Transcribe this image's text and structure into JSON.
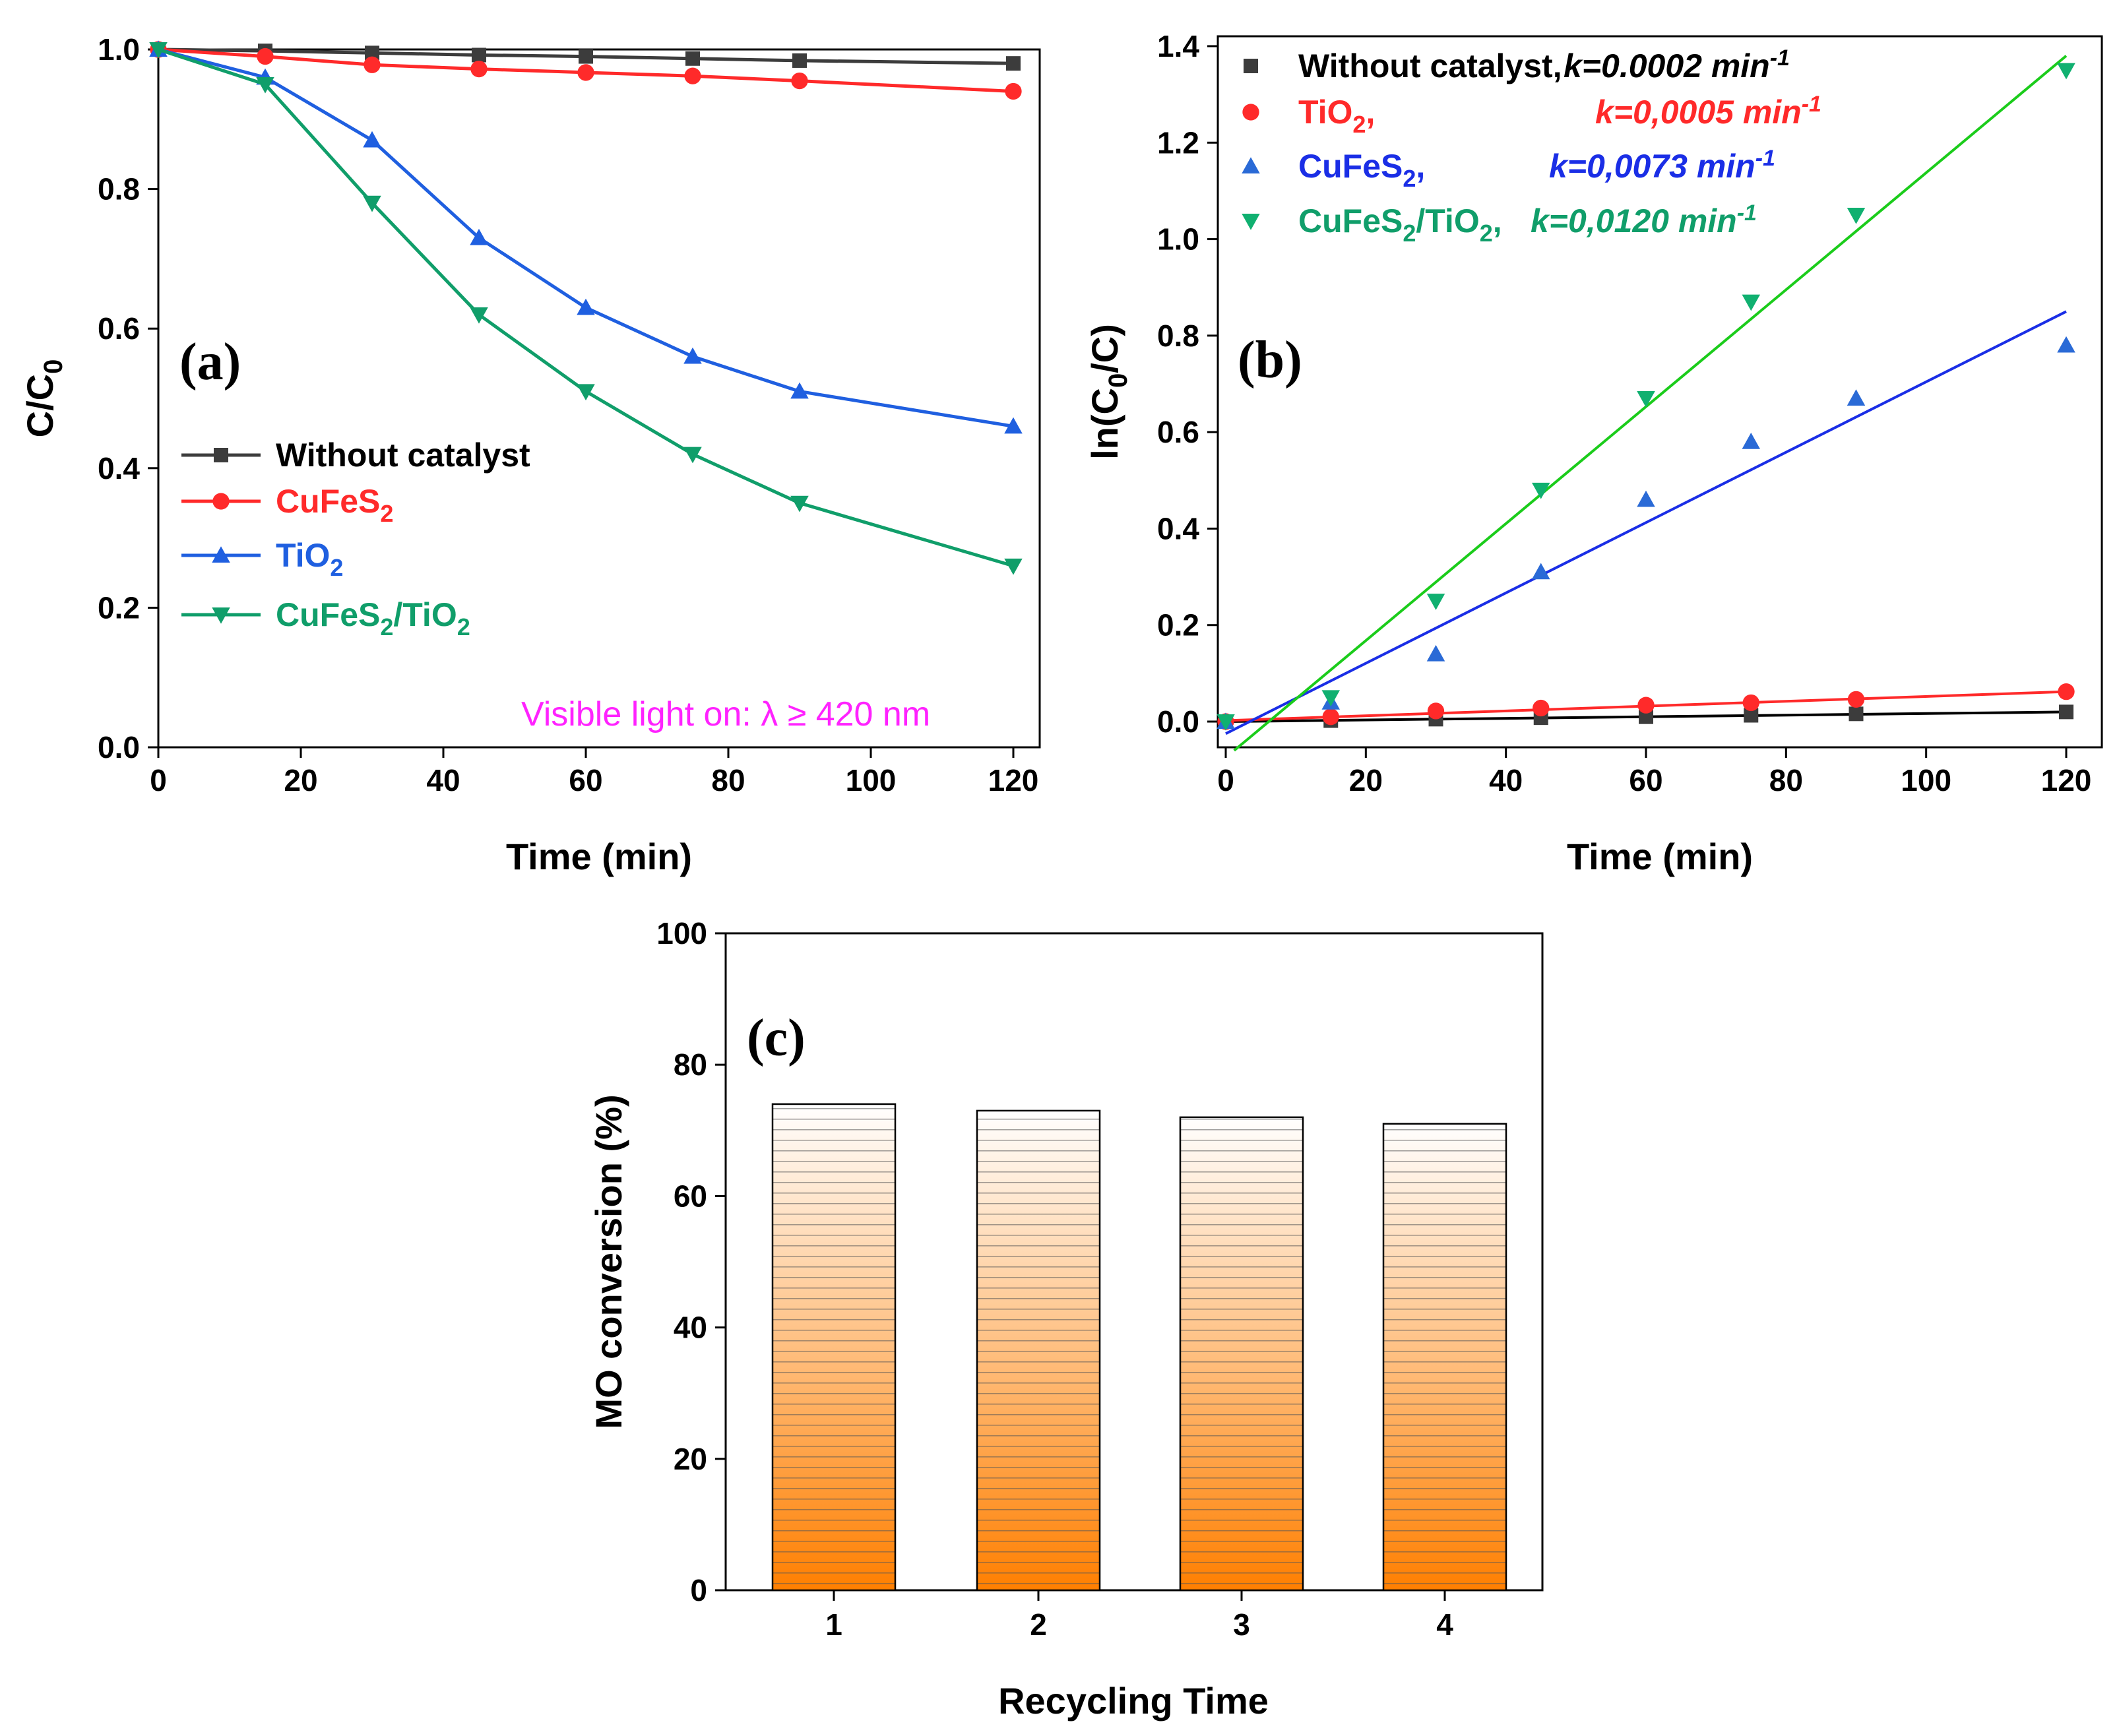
{
  "colors": {
    "without_catalyst": "#3c3c3c",
    "cufes2_a": "#ff2a2a",
    "tio2_a": "#1f5fe0",
    "composite_a": "#109e6a",
    "tio2_b": "#ff2a2a",
    "cufes2_b": "#1a2ee6",
    "composite_b": "#1bcc1b",
    "markers_cufes2_b": "#2a6ad6",
    "markers_composite_b": "#10b070",
    "note": "#ff22ff",
    "bar_fill_top": "#ffffff",
    "bar_fill_bottom": "#ff7f00"
  },
  "chart_data": [
    {
      "type": "line",
      "panel_label": "(a)",
      "xlabel": "Time (min)",
      "ylabel_main": "C/C",
      "ylabel_sub": "0",
      "xlim": [
        0,
        120
      ],
      "ylim": [
        0,
        1.0
      ],
      "xticks": [
        "0",
        "20",
        "40",
        "60",
        "80",
        "100",
        "120"
      ],
      "yticks": [
        "0.0",
        "0.2",
        "0.4",
        "0.6",
        "0.8",
        "1.0"
      ],
      "annotation": "Visible light on: λ ≥ 420 nm",
      "legend_position": "center-left",
      "x": [
        0,
        15,
        30,
        45,
        60,
        75,
        90,
        120
      ],
      "series": [
        {
          "name": "Without catalyst",
          "name_main": "Without catalyst",
          "name_sub": "",
          "name_tail": "",
          "marker": "square",
          "values": [
            1.0,
            0.998,
            0.995,
            0.992,
            0.99,
            0.987,
            0.984,
            0.98
          ]
        },
        {
          "name": "CuFeS2",
          "name_main": "CuFeS",
          "name_sub": "2",
          "name_tail": "",
          "marker": "circle",
          "values": [
            1.0,
            0.99,
            0.978,
            0.972,
            0.967,
            0.962,
            0.955,
            0.94
          ]
        },
        {
          "name": "TiO2",
          "name_main": "TiO",
          "name_sub": "2",
          "name_tail": "",
          "marker": "triangle-up",
          "values": [
            1.0,
            0.96,
            0.87,
            0.73,
            0.63,
            0.56,
            0.51,
            0.46
          ]
        },
        {
          "name": "CuFeS2/TiO2",
          "name_main": "CuFeS",
          "name_sub": "2",
          "name_tail": "/TiO",
          "name_tail_sub": "2",
          "marker": "triangle-down",
          "values": [
            1.0,
            0.95,
            0.78,
            0.62,
            0.51,
            0.42,
            0.35,
            0.26
          ]
        }
      ]
    },
    {
      "type": "scatter",
      "panel_label": "(b)",
      "xlabel": "Time (min)",
      "ylabel_pre": "ln(C",
      "ylabel_sub": "0",
      "ylabel_post": "/C)",
      "xlim": [
        -1,
        125
      ],
      "ylim": [
        -0.06,
        1.4
      ],
      "xticks": [
        "0",
        "20",
        "40",
        "60",
        "80",
        "100",
        "120"
      ],
      "yticks": [
        "0.0",
        "0.2",
        "0.4",
        "0.6",
        "0.8",
        "1.0",
        "1.2",
        "1.4"
      ],
      "legend_position": "top-left",
      "x": [
        0,
        15,
        30,
        45,
        60,
        75,
        90,
        120
      ],
      "series": [
        {
          "name": "Without catalyst,",
          "name_main": "Without catalyst,",
          "name_sub": "",
          "name_tail": "",
          "k_text": "k=0.0002 min",
          "k_sup": "-1",
          "marker": "square",
          "values": [
            0.0,
            0.002,
            0.005,
            0.008,
            0.01,
            0.013,
            0.016,
            0.02
          ],
          "fit": [
            [
              0,
              0.0
            ],
            [
              120,
              0.02
            ]
          ]
        },
        {
          "name": "TiO2,",
          "name_main": "TiO",
          "name_sub": "2",
          "name_tail": ",",
          "k_text": "k=0,0005 min",
          "k_sup": "-1",
          "marker": "circle",
          "values": [
            0.0,
            0.01,
            0.022,
            0.028,
            0.034,
            0.039,
            0.046,
            0.062
          ],
          "fit": [
            [
              0,
              0.002
            ],
            [
              120,
              0.062
            ]
          ]
        },
        {
          "name": "CuFeS2,",
          "name_main": "CuFeS",
          "name_sub": "2",
          "name_tail": ",",
          "k_text": "k=0,0073 min",
          "k_sup": "-1",
          "marker": "triangle-up",
          "values": [
            0.0,
            0.04,
            0.14,
            0.31,
            0.46,
            0.58,
            0.67,
            0.78
          ],
          "fit": [
            [
              0,
              -0.025
            ],
            [
              120,
              0.85
            ]
          ]
        },
        {
          "name": "CuFeS2/TiO2,",
          "name_main": "CuFeS",
          "name_sub": "2",
          "name_tail": "/TiO",
          "name_tail_sub": "2",
          "name_tail2": ",",
          "k_text": "k=0,0120 min",
          "k_sup": "-1",
          "marker": "triangle-down",
          "values": [
            0.0,
            0.05,
            0.25,
            0.48,
            0.67,
            0.87,
            1.05,
            1.35
          ],
          "fit": [
            [
              1.2,
              -0.06
            ],
            [
              120,
              1.38
            ]
          ]
        }
      ]
    },
    {
      "type": "bar",
      "panel_label": "(c)",
      "xlabel": "Recycling Time",
      "ylabel": "MO conversion (%)",
      "ylim": [
        0,
        100
      ],
      "yticks": [
        "0",
        "20",
        "40",
        "60",
        "80",
        "100"
      ],
      "categories": [
        "1",
        "2",
        "3",
        "4"
      ],
      "values": [
        74,
        73,
        72,
        71
      ]
    }
  ]
}
